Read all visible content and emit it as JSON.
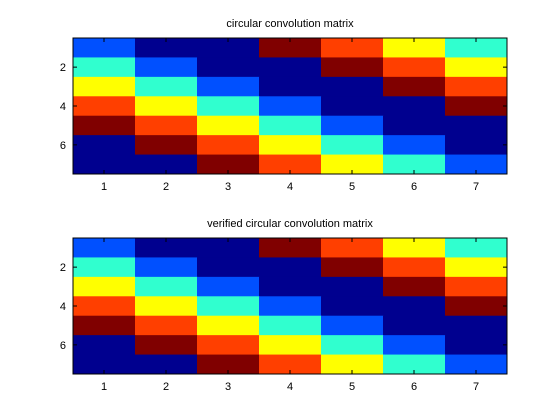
{
  "colormap": {
    "name": "jet",
    "level_colors": [
      "#00008f",
      "#0050ff",
      "#30ffcf",
      "#ffff00",
      "#ff3f00",
      "#800000"
    ]
  },
  "chart_data": [
    {
      "type": "heatmap",
      "title": "circular convolution matrix",
      "xlabel": "",
      "ylabel": "",
      "x_ticks": [
        1,
        2,
        3,
        4,
        5,
        6,
        7
      ],
      "y_ticks": [
        2,
        4,
        6
      ],
      "xlim": [
        0.5,
        7.5
      ],
      "ylim": [
        0.5,
        7.5
      ],
      "y_direction": "reversed",
      "grid": false,
      "legend": "none",
      "matrix": [
        [
          1,
          0,
          0,
          5,
          4,
          3,
          2
        ],
        [
          2,
          1,
          0,
          0,
          5,
          4,
          3
        ],
        [
          3,
          2,
          1,
          0,
          0,
          5,
          4
        ],
        [
          4,
          3,
          2,
          1,
          0,
          0,
          5
        ],
        [
          5,
          4,
          3,
          2,
          1,
          0,
          0
        ],
        [
          0,
          5,
          4,
          3,
          2,
          1,
          0
        ],
        [
          0,
          0,
          5,
          4,
          3,
          2,
          1
        ]
      ]
    },
    {
      "type": "heatmap",
      "title": "verified circular convolution matrix",
      "xlabel": "",
      "ylabel": "",
      "x_ticks": [
        1,
        2,
        3,
        4,
        5,
        6,
        7
      ],
      "y_ticks": [
        2,
        4,
        6
      ],
      "xlim": [
        0.5,
        7.5
      ],
      "ylim": [
        0.5,
        7.5
      ],
      "y_direction": "reversed",
      "grid": false,
      "legend": "none",
      "matrix": [
        [
          1,
          0,
          0,
          5,
          4,
          3,
          2
        ],
        [
          2,
          1,
          0,
          0,
          5,
          4,
          3
        ],
        [
          3,
          2,
          1,
          0,
          0,
          5,
          4
        ],
        [
          4,
          3,
          2,
          1,
          0,
          0,
          5
        ],
        [
          5,
          4,
          3,
          2,
          1,
          0,
          0
        ],
        [
          0,
          5,
          4,
          3,
          2,
          1,
          0
        ],
        [
          0,
          0,
          5,
          4,
          3,
          2,
          1
        ]
      ]
    }
  ]
}
